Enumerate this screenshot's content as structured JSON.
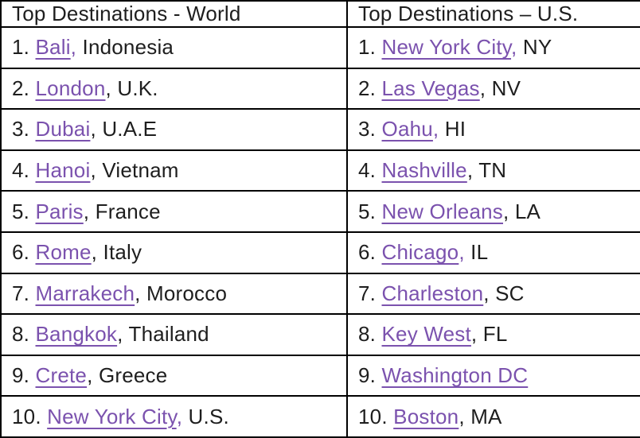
{
  "colors": {
    "link_purple": "#7b52ae",
    "text_black": "#1e1e1e",
    "border_black": "#000000",
    "background": "#ffffff"
  },
  "table": {
    "row_count": 10,
    "columns": [
      {
        "header": "Top Destinations - World",
        "rows": [
          {
            "rank": "1.",
            "city": "Bali",
            "comma": ",",
            "comma_purple": true,
            "region": "Indonesia"
          },
          {
            "rank": "2.",
            "city": "London",
            "comma": ",",
            "comma_purple": false,
            "region": "U.K."
          },
          {
            "rank": "3.",
            "city": "Dubai",
            "comma": ",",
            "comma_purple": false,
            "region": "U.A.E"
          },
          {
            "rank": "4.",
            "city": "Hanoi",
            "comma": ",",
            "comma_purple": false,
            "region": "Vietnam"
          },
          {
            "rank": "5.",
            "city": "Paris",
            "comma": ",",
            "comma_purple": false,
            "region": "France"
          },
          {
            "rank": "6.",
            "city": "Rome",
            "comma": ",",
            "comma_purple": false,
            "region": "Italy"
          },
          {
            "rank": "7.",
            "city": "Marrakech",
            "comma": ",",
            "comma_purple": false,
            "region": "Morocco"
          },
          {
            "rank": "8.",
            "city": "Bangkok",
            "comma": ",",
            "comma_purple": false,
            "region": "Thailand"
          },
          {
            "rank": "9.",
            "city": "Crete",
            "comma": ",",
            "comma_purple": false,
            "region": "Greece"
          },
          {
            "rank": "10.",
            "city": "New York City",
            "comma": ",",
            "comma_purple": true,
            "region": "U.S."
          }
        ]
      },
      {
        "header": "Top Destinations – U.S.",
        "rows": [
          {
            "rank": "1.",
            "city": "New York City",
            "comma": ",",
            "comma_purple": true,
            "region": "NY"
          },
          {
            "rank": "2.",
            "city": "Las Vegas",
            "comma": ",",
            "comma_purple": false,
            "region": "NV"
          },
          {
            "rank": "3.",
            "city": "Oahu",
            "comma": ",",
            "comma_purple": true,
            "region": "HI"
          },
          {
            "rank": "4.",
            "city": "Nashville",
            "comma": ",",
            "comma_purple": false,
            "region": "TN"
          },
          {
            "rank": "5.",
            "city": "New Orleans",
            "comma": ",",
            "comma_purple": false,
            "region": "LA"
          },
          {
            "rank": "6.",
            "city": "Chicago",
            "comma": ",",
            "comma_purple": true,
            "region": "IL"
          },
          {
            "rank": "7.",
            "city": "Charleston",
            "comma": ",",
            "comma_purple": false,
            "region": "SC"
          },
          {
            "rank": "8.",
            "city": "Key West",
            "comma": ",",
            "comma_purple": false,
            "region": "FL"
          },
          {
            "rank": "9.",
            "city": "Washington DC",
            "comma": "",
            "comma_purple": false,
            "region": ""
          },
          {
            "rank": "10.",
            "city": "Boston",
            "comma": ",",
            "comma_purple": false,
            "region": "MA"
          }
        ]
      }
    ]
  }
}
